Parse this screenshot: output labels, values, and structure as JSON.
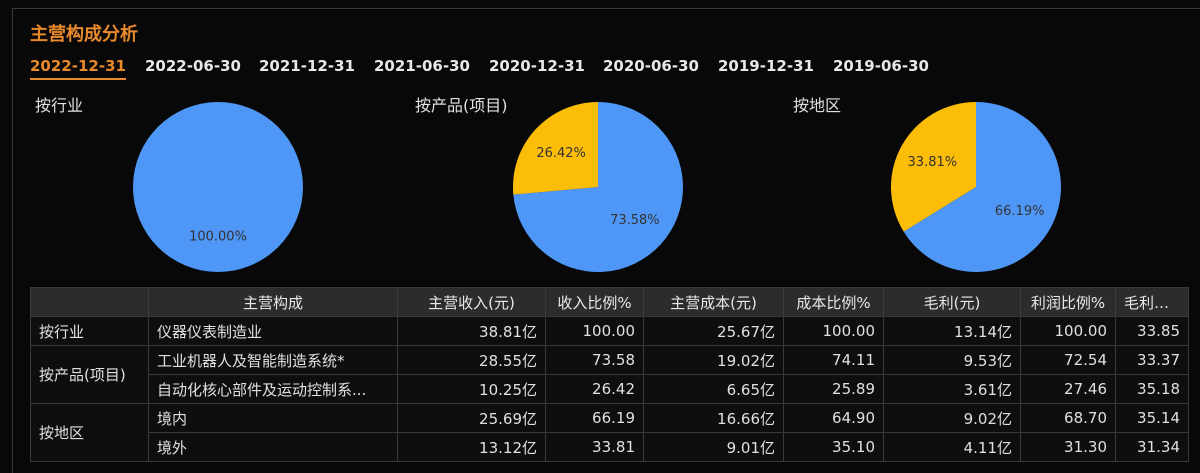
{
  "header": {
    "title": "主营构成分析"
  },
  "tabs": {
    "items": [
      "2022-12-31",
      "2022-06-30",
      "2021-12-31",
      "2021-06-30",
      "2020-12-31",
      "2020-06-30",
      "2019-12-31",
      "2019-06-30"
    ],
    "active": 0
  },
  "chart_data": [
    {
      "type": "pie",
      "title": "按行业",
      "values": [
        100
      ],
      "value_labels": [
        "100.00%"
      ],
      "colors": [
        "#4e97f7"
      ]
    },
    {
      "type": "pie",
      "title": "按产品(项目)",
      "values": [
        73.58,
        26.42
      ],
      "value_labels": [
        "73.58%",
        "26.42%"
      ],
      "colors": [
        "#4e97f7",
        "#fbbd08"
      ]
    },
    {
      "type": "pie",
      "title": "按地区",
      "values": [
        66.19,
        33.81
      ],
      "value_labels": [
        "66.19%",
        "33.81%"
      ],
      "colors": [
        "#4e97f7",
        "#fbbd08"
      ]
    }
  ],
  "table": {
    "columns": [
      "主营构成",
      "主营收入(元)",
      "收入比例%",
      "主营成本(元)",
      "成本比例%",
      "毛利(元)",
      "利润比例%",
      "毛利率%"
    ],
    "groups": [
      {
        "name": "按行业",
        "rows": [
          [
            "仪器仪表制造业",
            "38.81亿",
            "100.00",
            "25.67亿",
            "100.00",
            "13.14亿",
            "100.00",
            "33.85"
          ]
        ]
      },
      {
        "name": "按产品(项目)",
        "rows": [
          [
            "工业机器人及智能制造系统*",
            "28.55亿",
            "73.58",
            "19.02亿",
            "74.11",
            "9.53亿",
            "72.54",
            "33.37"
          ],
          [
            "自动化核心部件及运动控制系...",
            "10.25亿",
            "26.42",
            "6.65亿",
            "25.89",
            "3.61亿",
            "27.46",
            "35.18"
          ]
        ]
      },
      {
        "name": "按地区",
        "rows": [
          [
            "境内",
            "25.69亿",
            "66.19",
            "16.66亿",
            "64.90",
            "9.02亿",
            "68.70",
            "35.14"
          ],
          [
            "境外",
            "13.12亿",
            "33.81",
            "9.01亿",
            "35.10",
            "4.11亿",
            "31.30",
            "31.34"
          ]
        ]
      }
    ]
  }
}
